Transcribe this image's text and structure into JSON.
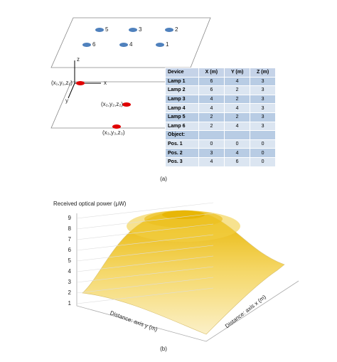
{
  "diagram": {
    "lamps": [
      "5",
      "3",
      "2",
      "6",
      "4",
      "1"
    ],
    "axes": [
      "z",
      "x",
      "y"
    ],
    "points": [
      "(x₁,y₁,z₁)",
      "(x₂,y₂,z₂)",
      "(x₃,y₃,z₃)"
    ],
    "caption": "(a)"
  },
  "table": {
    "header": [
      "Device",
      "X (m)",
      "Y (m)",
      "Z (m)"
    ],
    "rows": [
      [
        "Lamp 1",
        "6",
        "4",
        "3"
      ],
      [
        "Lamp 2",
        "6",
        "2",
        "3"
      ],
      [
        "Lamp 3",
        "4",
        "2",
        "3"
      ],
      [
        "Lamp 4",
        "4",
        "4",
        "3"
      ],
      [
        "Lamp 5",
        "2",
        "2",
        "3"
      ],
      [
        "Lamp 6",
        "2",
        "4",
        "3"
      ],
      [
        "Object:"
      ],
      [
        "Pos. 1",
        "0",
        "0",
        "0"
      ],
      [
        "Pos. 2",
        "3",
        "4",
        "0"
      ],
      [
        "Pos. 3",
        "4",
        "6",
        "0"
      ]
    ]
  },
  "surface_plot": {
    "z_axis_title": "Received optical power (μW)",
    "zlim": [
      1,
      9
    ],
    "zticks": [
      1,
      2,
      3,
      4,
      5,
      6,
      7,
      8,
      9
    ],
    "y_axis_title": "Distance: axis y (m)",
    "x_axis_title": "Distance: axis x (m)",
    "caption": "(b)"
  }
}
